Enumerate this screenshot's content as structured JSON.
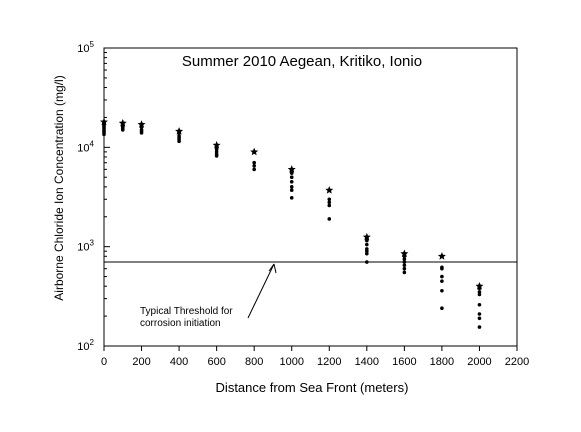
{
  "chart_data": {
    "type": "scatter",
    "title": "Summer 2010 Aegean, Kritiko, Ionio",
    "xlabel": "Distance from Sea Front (meters)",
    "ylabel": "Airborne Chloride Ion Concentration (mg/l)",
    "xlim": [
      0,
      2200
    ],
    "ylim": [
      100,
      100000
    ],
    "y_scale": "log",
    "grid": false,
    "x_ticks": [
      0,
      200,
      400,
      600,
      800,
      1000,
      1200,
      1400,
      1600,
      1800,
      2000,
      2200
    ],
    "y_ticks": [
      {
        "value": 100,
        "base": "10",
        "exp": "2"
      },
      {
        "value": 1000,
        "base": "10",
        "exp": "3"
      },
      {
        "value": 10000,
        "base": "10",
        "exp": "4"
      },
      {
        "value": 100000,
        "base": "10",
        "exp": "5"
      }
    ],
    "threshold": {
      "value": 700,
      "label_line1": "Typical Threshold for",
      "label_line2": "corrosion initiation"
    },
    "points": [
      {
        "x": 0,
        "y": 18000,
        "marker": "star"
      },
      {
        "x": 0,
        "y": 17000,
        "marker": "dot"
      },
      {
        "x": 0,
        "y": 16500,
        "marker": "dot"
      },
      {
        "x": 0,
        "y": 16000,
        "marker": "dot"
      },
      {
        "x": 0,
        "y": 15500,
        "marker": "dot"
      },
      {
        "x": 0,
        "y": 15000,
        "marker": "dot"
      },
      {
        "x": 0,
        "y": 14500,
        "marker": "dot"
      },
      {
        "x": 0,
        "y": 14000,
        "marker": "dot"
      },
      {
        "x": 0,
        "y": 13500,
        "marker": "dot"
      },
      {
        "x": 100,
        "y": 17500,
        "marker": "star"
      },
      {
        "x": 100,
        "y": 16500,
        "marker": "dot"
      },
      {
        "x": 100,
        "y": 16000,
        "marker": "dot"
      },
      {
        "x": 100,
        "y": 15500,
        "marker": "dot"
      },
      {
        "x": 100,
        "y": 15000,
        "marker": "dot"
      },
      {
        "x": 200,
        "y": 17000,
        "marker": "star"
      },
      {
        "x": 200,
        "y": 16000,
        "marker": "dot"
      },
      {
        "x": 200,
        "y": 15000,
        "marker": "dot"
      },
      {
        "x": 200,
        "y": 14500,
        "marker": "dot"
      },
      {
        "x": 200,
        "y": 14000,
        "marker": "dot"
      },
      {
        "x": 400,
        "y": 14500,
        "marker": "star"
      },
      {
        "x": 400,
        "y": 14000,
        "marker": "dot"
      },
      {
        "x": 400,
        "y": 13000,
        "marker": "dot"
      },
      {
        "x": 400,
        "y": 12500,
        "marker": "dot"
      },
      {
        "x": 400,
        "y": 12000,
        "marker": "dot"
      },
      {
        "x": 400,
        "y": 11500,
        "marker": "dot"
      },
      {
        "x": 600,
        "y": 10500,
        "marker": "star"
      },
      {
        "x": 600,
        "y": 10000,
        "marker": "dot"
      },
      {
        "x": 600,
        "y": 9500,
        "marker": "dot"
      },
      {
        "x": 600,
        "y": 9000,
        "marker": "dot"
      },
      {
        "x": 600,
        "y": 8500,
        "marker": "dot"
      },
      {
        "x": 600,
        "y": 8200,
        "marker": "dot"
      },
      {
        "x": 800,
        "y": 9000,
        "marker": "star"
      },
      {
        "x": 800,
        "y": 7000,
        "marker": "dot"
      },
      {
        "x": 800,
        "y": 6500,
        "marker": "dot"
      },
      {
        "x": 800,
        "y": 6000,
        "marker": "dot"
      },
      {
        "x": 1000,
        "y": 6000,
        "marker": "star"
      },
      {
        "x": 1000,
        "y": 5500,
        "marker": "dot"
      },
      {
        "x": 1000,
        "y": 5000,
        "marker": "dot"
      },
      {
        "x": 1000,
        "y": 4500,
        "marker": "dot"
      },
      {
        "x": 1000,
        "y": 4000,
        "marker": "dot"
      },
      {
        "x": 1000,
        "y": 3700,
        "marker": "dot"
      },
      {
        "x": 1000,
        "y": 3100,
        "marker": "dot"
      },
      {
        "x": 1200,
        "y": 3700,
        "marker": "star"
      },
      {
        "x": 1200,
        "y": 3000,
        "marker": "dot"
      },
      {
        "x": 1200,
        "y": 2800,
        "marker": "dot"
      },
      {
        "x": 1200,
        "y": 2600,
        "marker": "dot"
      },
      {
        "x": 1200,
        "y": 1900,
        "marker": "dot"
      },
      {
        "x": 1400,
        "y": 1250,
        "marker": "star"
      },
      {
        "x": 1400,
        "y": 1150,
        "marker": "dot"
      },
      {
        "x": 1400,
        "y": 1050,
        "marker": "dot"
      },
      {
        "x": 1400,
        "y": 950,
        "marker": "dot"
      },
      {
        "x": 1400,
        "y": 900,
        "marker": "dot"
      },
      {
        "x": 1400,
        "y": 850,
        "marker": "dot"
      },
      {
        "x": 1400,
        "y": 700,
        "marker": "dot"
      },
      {
        "x": 1600,
        "y": 850,
        "marker": "star"
      },
      {
        "x": 1600,
        "y": 800,
        "marker": "dot"
      },
      {
        "x": 1600,
        "y": 750,
        "marker": "dot"
      },
      {
        "x": 1600,
        "y": 700,
        "marker": "dot"
      },
      {
        "x": 1600,
        "y": 650,
        "marker": "dot"
      },
      {
        "x": 1600,
        "y": 600,
        "marker": "dot"
      },
      {
        "x": 1600,
        "y": 550,
        "marker": "dot"
      },
      {
        "x": 1800,
        "y": 800,
        "marker": "star"
      },
      {
        "x": 1800,
        "y": 620,
        "marker": "dot"
      },
      {
        "x": 1800,
        "y": 600,
        "marker": "dot"
      },
      {
        "x": 1800,
        "y": 500,
        "marker": "dot"
      },
      {
        "x": 1800,
        "y": 450,
        "marker": "dot"
      },
      {
        "x": 1800,
        "y": 360,
        "marker": "dot"
      },
      {
        "x": 1800,
        "y": 240,
        "marker": "dot"
      },
      {
        "x": 2000,
        "y": 400,
        "marker": "star"
      },
      {
        "x": 2000,
        "y": 380,
        "marker": "dot"
      },
      {
        "x": 2000,
        "y": 350,
        "marker": "dot"
      },
      {
        "x": 2000,
        "y": 330,
        "marker": "dot"
      },
      {
        "x": 2000,
        "y": 260,
        "marker": "dot"
      },
      {
        "x": 2000,
        "y": 210,
        "marker": "dot"
      },
      {
        "x": 2000,
        "y": 190,
        "marker": "dot"
      },
      {
        "x": 2000,
        "y": 155,
        "marker": "dot"
      }
    ]
  }
}
